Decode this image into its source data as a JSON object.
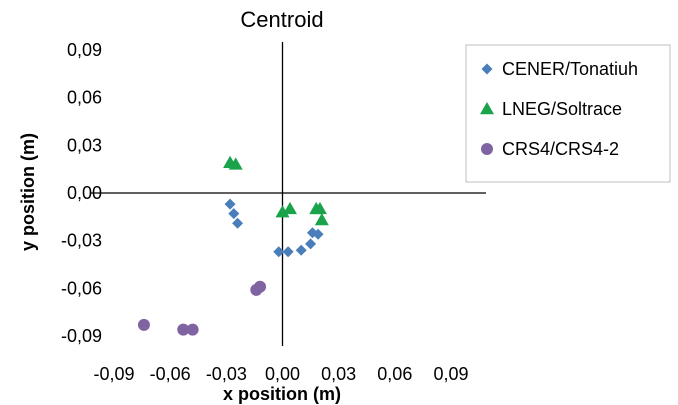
{
  "chart_data": {
    "type": "scatter",
    "title": "Centroid",
    "xlabel": "x position (m)",
    "ylabel": "y position (m)",
    "xlim": [
      -0.09,
      0.09
    ],
    "ylim": [
      -0.09,
      0.09
    ],
    "x_ticks": [
      "-0,09",
      "-0,06",
      "-0,03",
      "0,00",
      "0,03",
      "0,06",
      "0,09"
    ],
    "y_ticks": [
      "0,09",
      "0,06",
      "0,03",
      "0,00",
      "-0,03",
      "-0,06",
      "-0,09"
    ],
    "grid": false,
    "legend_position": "right",
    "series": [
      {
        "name": "CENER/Tonatiuh",
        "marker": "diamond",
        "color": "#4a7ebb",
        "points": [
          {
            "x": -0.028,
            "y": -0.007
          },
          {
            "x": -0.026,
            "y": -0.013
          },
          {
            "x": -0.024,
            "y": -0.019
          },
          {
            "x": -0.002,
            "y": -0.037
          },
          {
            "x": 0.003,
            "y": -0.037
          },
          {
            "x": 0.01,
            "y": -0.036
          },
          {
            "x": 0.015,
            "y": -0.032
          },
          {
            "x": 0.016,
            "y": -0.025
          },
          {
            "x": 0.019,
            "y": -0.026
          }
        ]
      },
      {
        "name": "LNEG/Soltrace",
        "marker": "triangle",
        "color": "#1aa34a",
        "points": [
          {
            "x": -0.028,
            "y": 0.019
          },
          {
            "x": -0.025,
            "y": 0.018
          },
          {
            "x": 0.0,
            "y": -0.012
          },
          {
            "x": 0.004,
            "y": -0.01
          },
          {
            "x": 0.018,
            "y": -0.01
          },
          {
            "x": 0.02,
            "y": -0.01
          },
          {
            "x": 0.021,
            "y": -0.017
          }
        ]
      },
      {
        "name": "CRS4/CRS4-2",
        "marker": "circle",
        "color": "#8064a2",
        "points": [
          {
            "x": -0.074,
            "y": -0.083
          },
          {
            "x": -0.053,
            "y": -0.086
          },
          {
            "x": -0.048,
            "y": -0.086
          },
          {
            "x": -0.014,
            "y": -0.061
          },
          {
            "x": -0.012,
            "y": -0.059
          }
        ]
      }
    ]
  }
}
